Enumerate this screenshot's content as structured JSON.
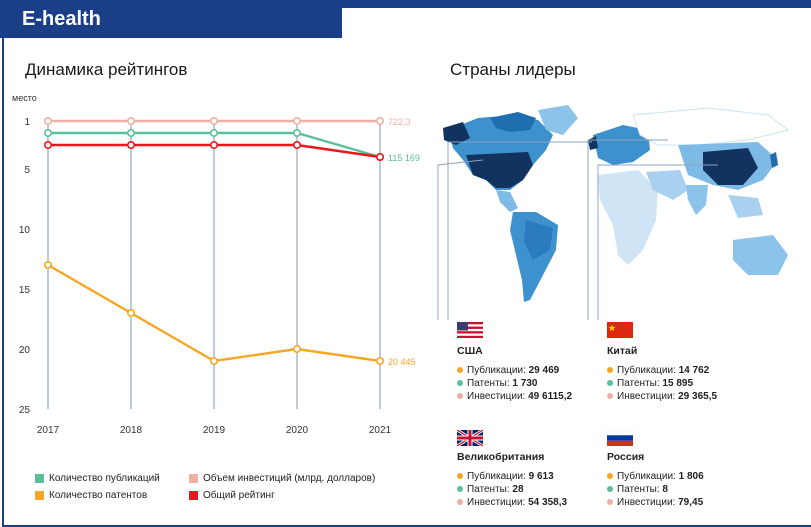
{
  "header": {
    "title": "E-health"
  },
  "left_title": "Динамика рейтингов",
  "right_title": "Страны лидеры",
  "colors": {
    "publications": "#5bbf9a",
    "patents": "#f5a623",
    "investments": "#efb0a3",
    "rating": "#e8171c",
    "navy": "#1b3f86"
  },
  "chart_data": {
    "type": "line",
    "ylabel": "место",
    "ylim": [
      1,
      25
    ],
    "y_inverted": true,
    "y_ticks": [
      1,
      5,
      10,
      15,
      20,
      25
    ],
    "x": [
      "2017",
      "2018",
      "2019",
      "2020",
      "2021"
    ],
    "series": [
      {
        "name": "Объем инвестиций (млрд. долларов)",
        "color": "#efb0a3",
        "values": [
          1,
          1,
          1,
          1,
          1
        ],
        "end_label": "722,3"
      },
      {
        "name": "Количество публикаций",
        "color": "#5bbf9a",
        "values": [
          2,
          2,
          2,
          2,
          4
        ],
        "end_label": "115 169"
      },
      {
        "name": "Общий рейтинг",
        "color": "#e8171c",
        "values": [
          3,
          3,
          3,
          3,
          4
        ],
        "end_label": ""
      },
      {
        "name": "Количество патентов",
        "color": "#f5a623",
        "values": [
          13,
          17,
          21,
          20,
          21
        ],
        "end_label": "20 445"
      }
    ]
  },
  "legend": [
    {
      "label": "Количество публикаций",
      "color": "#5bbf9a"
    },
    {
      "label": "Объем инвестиций (млрд. долларов)",
      "color": "#efb0a3"
    },
    {
      "label": "Количество патентов",
      "color": "#f5a623"
    },
    {
      "label": "Общий рейтинг",
      "color": "#e8171c"
    }
  ],
  "countries": [
    {
      "name": "США",
      "publications": "29 469",
      "patents": "1 730",
      "investments": "49 6115,2"
    },
    {
      "name": "Китай",
      "publications": "14 762",
      "patents": "15 895",
      "investments": "29 365,5"
    },
    {
      "name": "Великобритания",
      "publications": "9 613",
      "patents": "28",
      "investments": "54 358,3"
    },
    {
      "name": "Россия",
      "publications": "1 806",
      "patents": "8",
      "investments": "79,45"
    }
  ],
  "labels": {
    "publications": "Публикации:",
    "patents": "Патенты:",
    "investments": "Инвестиции:"
  }
}
